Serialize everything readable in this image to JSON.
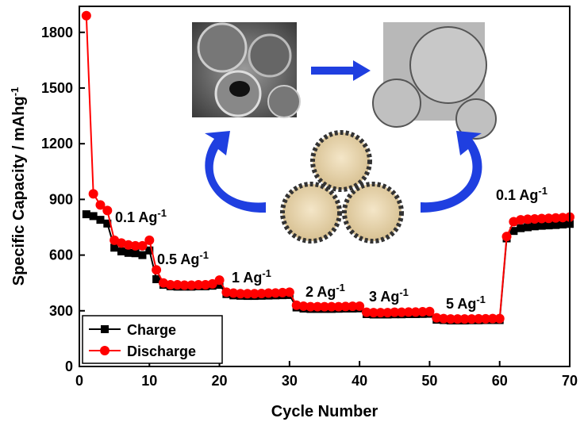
{
  "chart_data": {
    "type": "line",
    "xlabel": "Cycle Number",
    "ylabel": "Specific Capacity / mAhg",
    "ylabel_sup": "-1",
    "xlim": [
      0,
      70
    ],
    "xticks": [
      0,
      10,
      20,
      30,
      40,
      50,
      60,
      70
    ],
    "ylim": [
      0,
      1940
    ],
    "yticks": [
      0,
      300,
      600,
      900,
      1200,
      1500,
      1800
    ],
    "legend": "lower left",
    "annotations": [
      {
        "text": "0.1 Ag",
        "sup": "-1"
      },
      {
        "text": "0.5 Ag",
        "sup": "-1"
      },
      {
        "text": "1 Ag",
        "sup": "-1"
      },
      {
        "text": "2 Ag",
        "sup": "-1"
      },
      {
        "text": "3 Ag",
        "sup": "-1"
      },
      {
        "text": "5 Ag",
        "sup": "-1"
      },
      {
        "text": "0.1 Ag",
        "sup": "-1"
      }
    ],
    "x": [
      1,
      2,
      3,
      4,
      5,
      6,
      7,
      8,
      9,
      10,
      11,
      12,
      13,
      14,
      15,
      16,
      17,
      18,
      19,
      20,
      21,
      22,
      23,
      24,
      25,
      26,
      27,
      28,
      29,
      30,
      31,
      32,
      33,
      34,
      35,
      36,
      37,
      38,
      39,
      40,
      41,
      42,
      43,
      44,
      45,
      46,
      47,
      48,
      49,
      50,
      51,
      52,
      53,
      54,
      55,
      56,
      57,
      58,
      59,
      60,
      61,
      62,
      63,
      64,
      65,
      66,
      67,
      68,
      69,
      70
    ],
    "series": [
      {
        "name": "Charge",
        "color": "#000000",
        "marker": "square",
        "values": [
          820,
          810,
          790,
          770,
          640,
          620,
          612,
          610,
          600,
          625,
          470,
          440,
          432,
          430,
          430,
          430,
          432,
          432,
          435,
          440,
          390,
          383,
          381,
          380,
          380,
          381,
          382,
          383,
          384,
          385,
          318,
          312,
          310,
          310,
          310,
          310,
          311,
          312,
          312,
          313,
          282,
          280,
          280,
          280,
          281,
          281,
          282,
          282,
          283,
          284,
          252,
          250,
          248,
          248,
          248,
          249,
          249,
          250,
          250,
          250,
          690,
          730,
          745,
          750,
          755,
          758,
          760,
          762,
          765,
          768
        ]
      },
      {
        "name": "Discharge",
        "color": "#ff0000",
        "marker": "circle",
        "values": [
          1890,
          930,
          870,
          840,
          680,
          665,
          655,
          650,
          650,
          680,
          520,
          450,
          440,
          440,
          438,
          438,
          440,
          440,
          445,
          465,
          400,
          395,
          392,
          392,
          392,
          393,
          395,
          396,
          398,
          400,
          330,
          325,
          322,
          322,
          322,
          322,
          322,
          323,
          324,
          325,
          292,
          290,
          290,
          290,
          292,
          292,
          293,
          293,
          295,
          296,
          262,
          258,
          256,
          256,
          256,
          256,
          257,
          257,
          258,
          258,
          700,
          780,
          790,
          793,
          795,
          797,
          798,
          800,
          802,
          805
        ]
      }
    ]
  }
}
